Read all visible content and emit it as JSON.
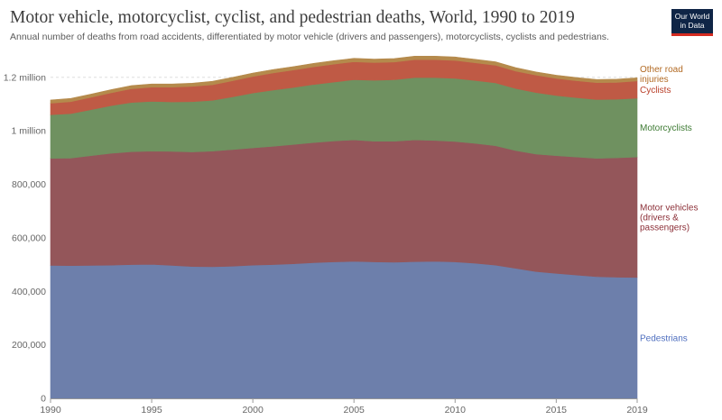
{
  "title": "Motor vehicle, motorcyclist, cyclist, and pedestrian deaths, World, 1990 to 2019",
  "subtitle": "Annual number of deaths from road accidents, differentiated by motor vehicle (drivers and passengers), motorcyclists, cyclists and pedestrians.",
  "logo": {
    "line1": "Our World",
    "line2": "in Data"
  },
  "chart_data": {
    "type": "area",
    "stacked": true,
    "x": [
      1990,
      1991,
      1992,
      1993,
      1994,
      1995,
      1996,
      1997,
      1998,
      1999,
      2000,
      2001,
      2002,
      2003,
      2004,
      2005,
      2006,
      2007,
      2008,
      2009,
      2010,
      2011,
      2012,
      2013,
      2014,
      2015,
      2016,
      2017,
      2018,
      2019
    ],
    "xlim": [
      1990,
      2019
    ],
    "ylim": [
      0,
      1280000
    ],
    "grid": "horizontal dotted",
    "legend": "right, inline labels",
    "x_ticks": [
      {
        "value": 1990,
        "label": "1990"
      },
      {
        "value": 1995,
        "label": "1995"
      },
      {
        "value": 2000,
        "label": "2000"
      },
      {
        "value": 2005,
        "label": "2005"
      },
      {
        "value": 2010,
        "label": "2010"
      },
      {
        "value": 2015,
        "label": "2015"
      },
      {
        "value": 2019,
        "label": "2019"
      }
    ],
    "y_ticks": [
      {
        "value": 0,
        "label": "0"
      },
      {
        "value": 200000,
        "label": "200,000"
      },
      {
        "value": 400000,
        "label": "400,000"
      },
      {
        "value": 600000,
        "label": "600,000"
      },
      {
        "value": 800000,
        "label": "800,000"
      },
      {
        "value": 1000000,
        "label": "1 million"
      },
      {
        "value": 1200000,
        "label": "1.2 million"
      }
    ],
    "series": [
      {
        "key": "pedestrians",
        "label_lines": [
          "Pedestrians"
        ],
        "color": "#6d7fab",
        "label_color": "#4f6fbf",
        "values": [
          497000,
          496000,
          497000,
          498000,
          500000,
          501000,
          497000,
          493000,
          492000,
          494000,
          498000,
          500000,
          503000,
          507000,
          510000,
          512000,
          510000,
          509000,
          511000,
          512000,
          510000,
          505000,
          498000,
          486000,
          474000,
          467000,
          461000,
          455000,
          453000,
          452000
        ]
      },
      {
        "key": "motor_vehicles",
        "label_lines": [
          "Motor vehicles",
          "(drivers &",
          "passengers)"
        ],
        "color": "#94565a",
        "label_color": "#8c3038",
        "values": [
          400000,
          402000,
          410000,
          418000,
          422000,
          423000,
          426000,
          428000,
          432000,
          436000,
          438000,
          442000,
          446000,
          449000,
          452000,
          454000,
          451000,
          452000,
          455000,
          452000,
          450000,
          448000,
          446000,
          440000,
          439000,
          440000,
          441000,
          442000,
          446000,
          450000
        ]
      },
      {
        "key": "motorcyclists",
        "label_lines": [
          "Motorcyclists"
        ],
        "color": "#6f9160",
        "label_color": "#3d7a33",
        "values": [
          163000,
          166000,
          172000,
          178000,
          184000,
          186000,
          185000,
          188000,
          190000,
          197000,
          205000,
          210000,
          213000,
          217000,
          220000,
          225000,
          228000,
          230000,
          233000,
          235000,
          236000,
          235000,
          235000,
          232000,
          230000,
          225000,
          222000,
          220000,
          219000,
          220000
        ]
      },
      {
        "key": "cyclists",
        "label_lines": [
          "Cyclists"
        ],
        "color": "#bf5a45",
        "label_color": "#b93e28",
        "values": [
          43000,
          45000,
          46000,
          48000,
          51000,
          53000,
          55000,
          57000,
          58000,
          60000,
          62000,
          64000,
          65000,
          66000,
          67000,
          67000,
          66000,
          66000,
          67000,
          67000,
          67000,
          66000,
          66000,
          65000,
          65000,
          64000,
          63000,
          63000,
          63000,
          64000
        ]
      },
      {
        "key": "other",
        "label_lines": [
          "Other road",
          "injuries"
        ],
        "color": "#b58a4c",
        "label_color": "#b26a23",
        "values": [
          12000,
          12000,
          12000,
          12000,
          12000,
          12000,
          12000,
          12000,
          13000,
          13000,
          13000,
          13000,
          13000,
          13000,
          13000,
          13000,
          13000,
          13000,
          13000,
          13000,
          13000,
          13000,
          13000,
          13000,
          12000,
          12000,
          12000,
          12000,
          12000,
          12000
        ]
      }
    ]
  }
}
